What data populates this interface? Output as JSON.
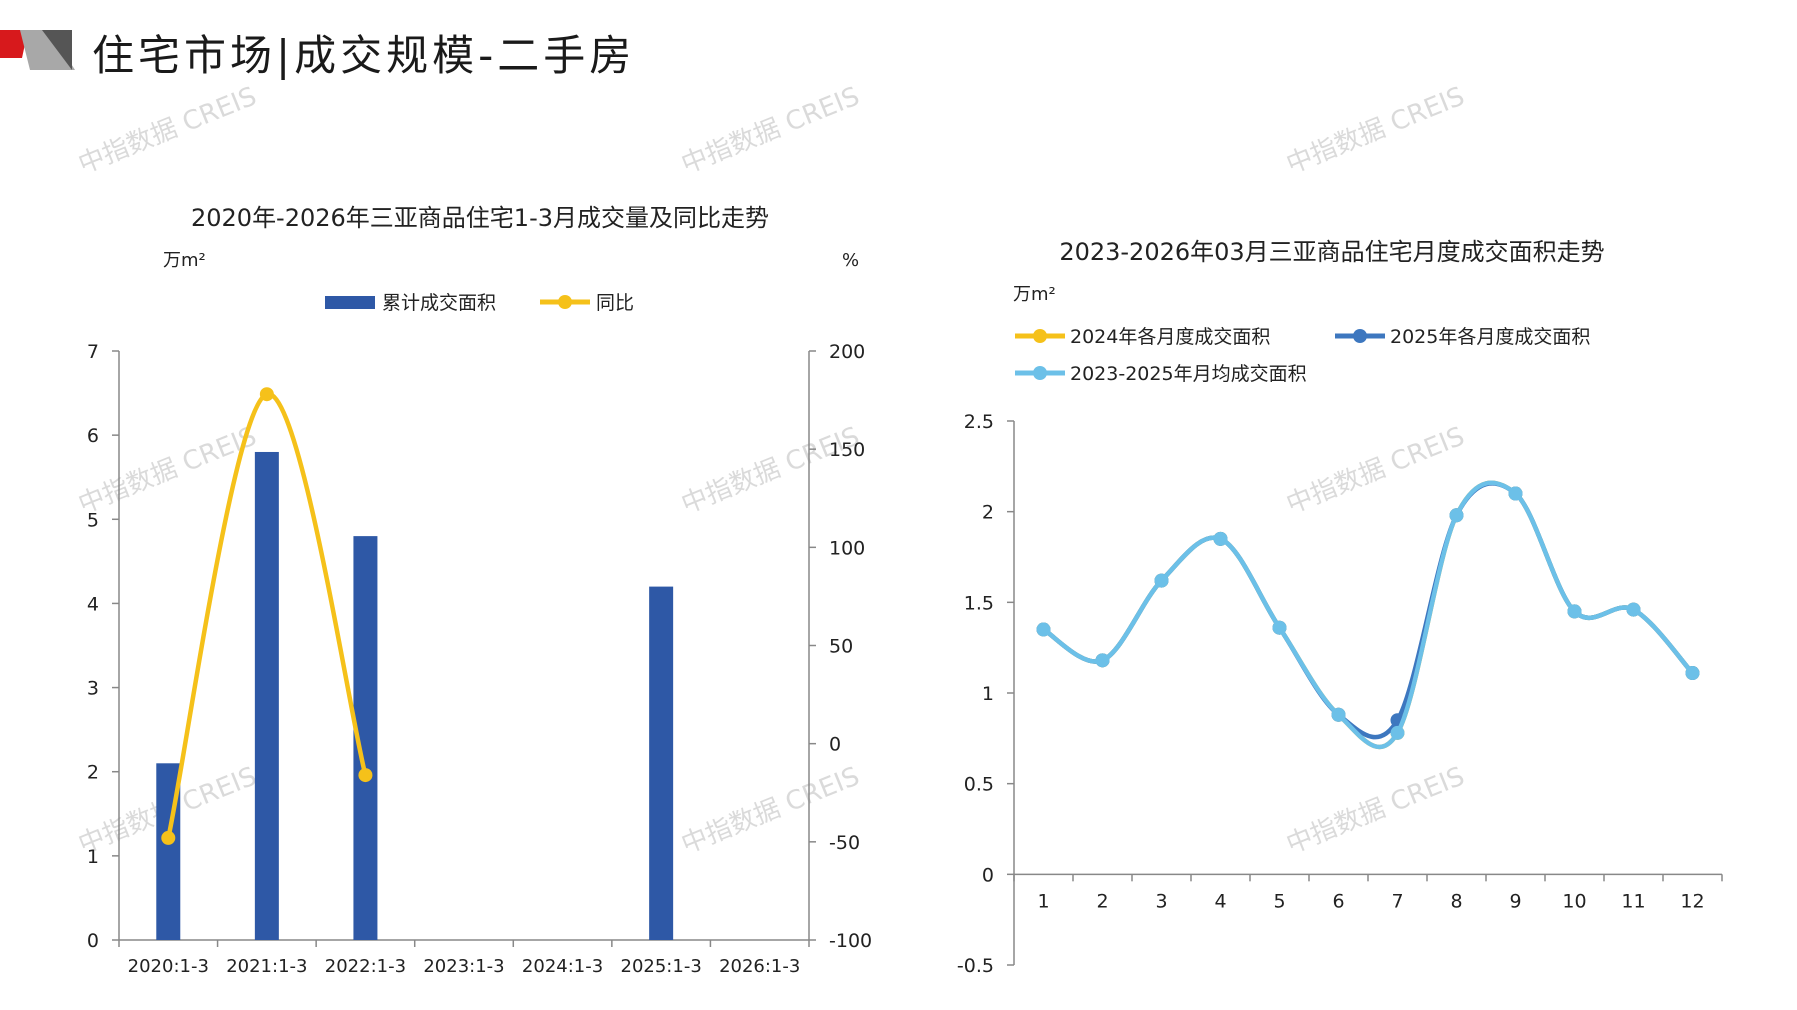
{
  "page": {
    "title": "住宅市场|成交规模-二手房",
    "watermark": "中指数据 CREIS"
  },
  "colors": {
    "bar": "#2e58a6",
    "yoy": "#f5c11a",
    "s2024": "#f5c11a",
    "s2025": "#3d77bf",
    "savg": "#6cc0e8",
    "logo_red": "#d7191c",
    "logo_gray": "#9e9e9e"
  },
  "chart_data": [
    {
      "type": "bar",
      "title": "2020年-2026年三亚商品住宅1-3月成交量及同比走势",
      "ylabel_left": "万m²",
      "ylabel_right": "%",
      "categories": [
        "2020:1-3",
        "2021:1-3",
        "2022:1-3",
        "2023:1-3",
        "2024:1-3",
        "2025:1-3",
        "2026:1-3"
      ],
      "series": [
        {
          "name": "累计成交面积",
          "type": "bar",
          "axis": "left",
          "values": [
            2.1,
            5.8,
            4.8,
            null,
            null,
            4.2,
            null
          ]
        },
        {
          "name": "同比",
          "type": "line",
          "axis": "right",
          "values": [
            -48,
            178,
            -16,
            null,
            null,
            null,
            null
          ]
        }
      ],
      "ylim_left": [
        0,
        7
      ],
      "yticks_left": [
        0,
        1,
        2,
        3,
        4,
        5,
        6,
        7
      ],
      "ylim_right": [
        -100,
        200
      ],
      "yticks_right": [
        -100,
        -50,
        0,
        50,
        100,
        150,
        200
      ],
      "legend": "top-center"
    },
    {
      "type": "line",
      "title": "2023-2026年03月三亚商品住宅月度成交面积走势",
      "ylabel": "万m²",
      "x": [
        1,
        2,
        3,
        4,
        5,
        6,
        7,
        8,
        9,
        10,
        11,
        12
      ],
      "series": [
        {
          "name": "2024年各月度成交面积",
          "values": [
            1.35,
            1.18,
            1.62,
            1.85,
            1.36,
            0.88,
            0.78,
            1.98,
            2.1,
            1.45,
            1.46,
            1.11
          ]
        },
        {
          "name": "2025年各月度成交面积",
          "values": [
            1.35,
            1.18,
            1.62,
            1.85,
            1.36,
            0.88,
            0.85,
            1.98,
            2.1,
            1.45,
            1.46,
            1.11
          ]
        },
        {
          "name": "2023-2025年月均成交面积",
          "values": [
            1.35,
            1.18,
            1.62,
            1.85,
            1.36,
            0.88,
            0.78,
            1.98,
            2.1,
            1.45,
            1.46,
            1.11
          ]
        }
      ],
      "ylim": [
        -0.5,
        2.5
      ],
      "yticks": [
        -0.5,
        0,
        0.5,
        1,
        1.5,
        2,
        2.5
      ],
      "ytick_labels": [
        "-0.5",
        "0",
        "0.5",
        "1",
        "1.5",
        "2",
        "2.5"
      ],
      "legend": "top-left"
    }
  ]
}
